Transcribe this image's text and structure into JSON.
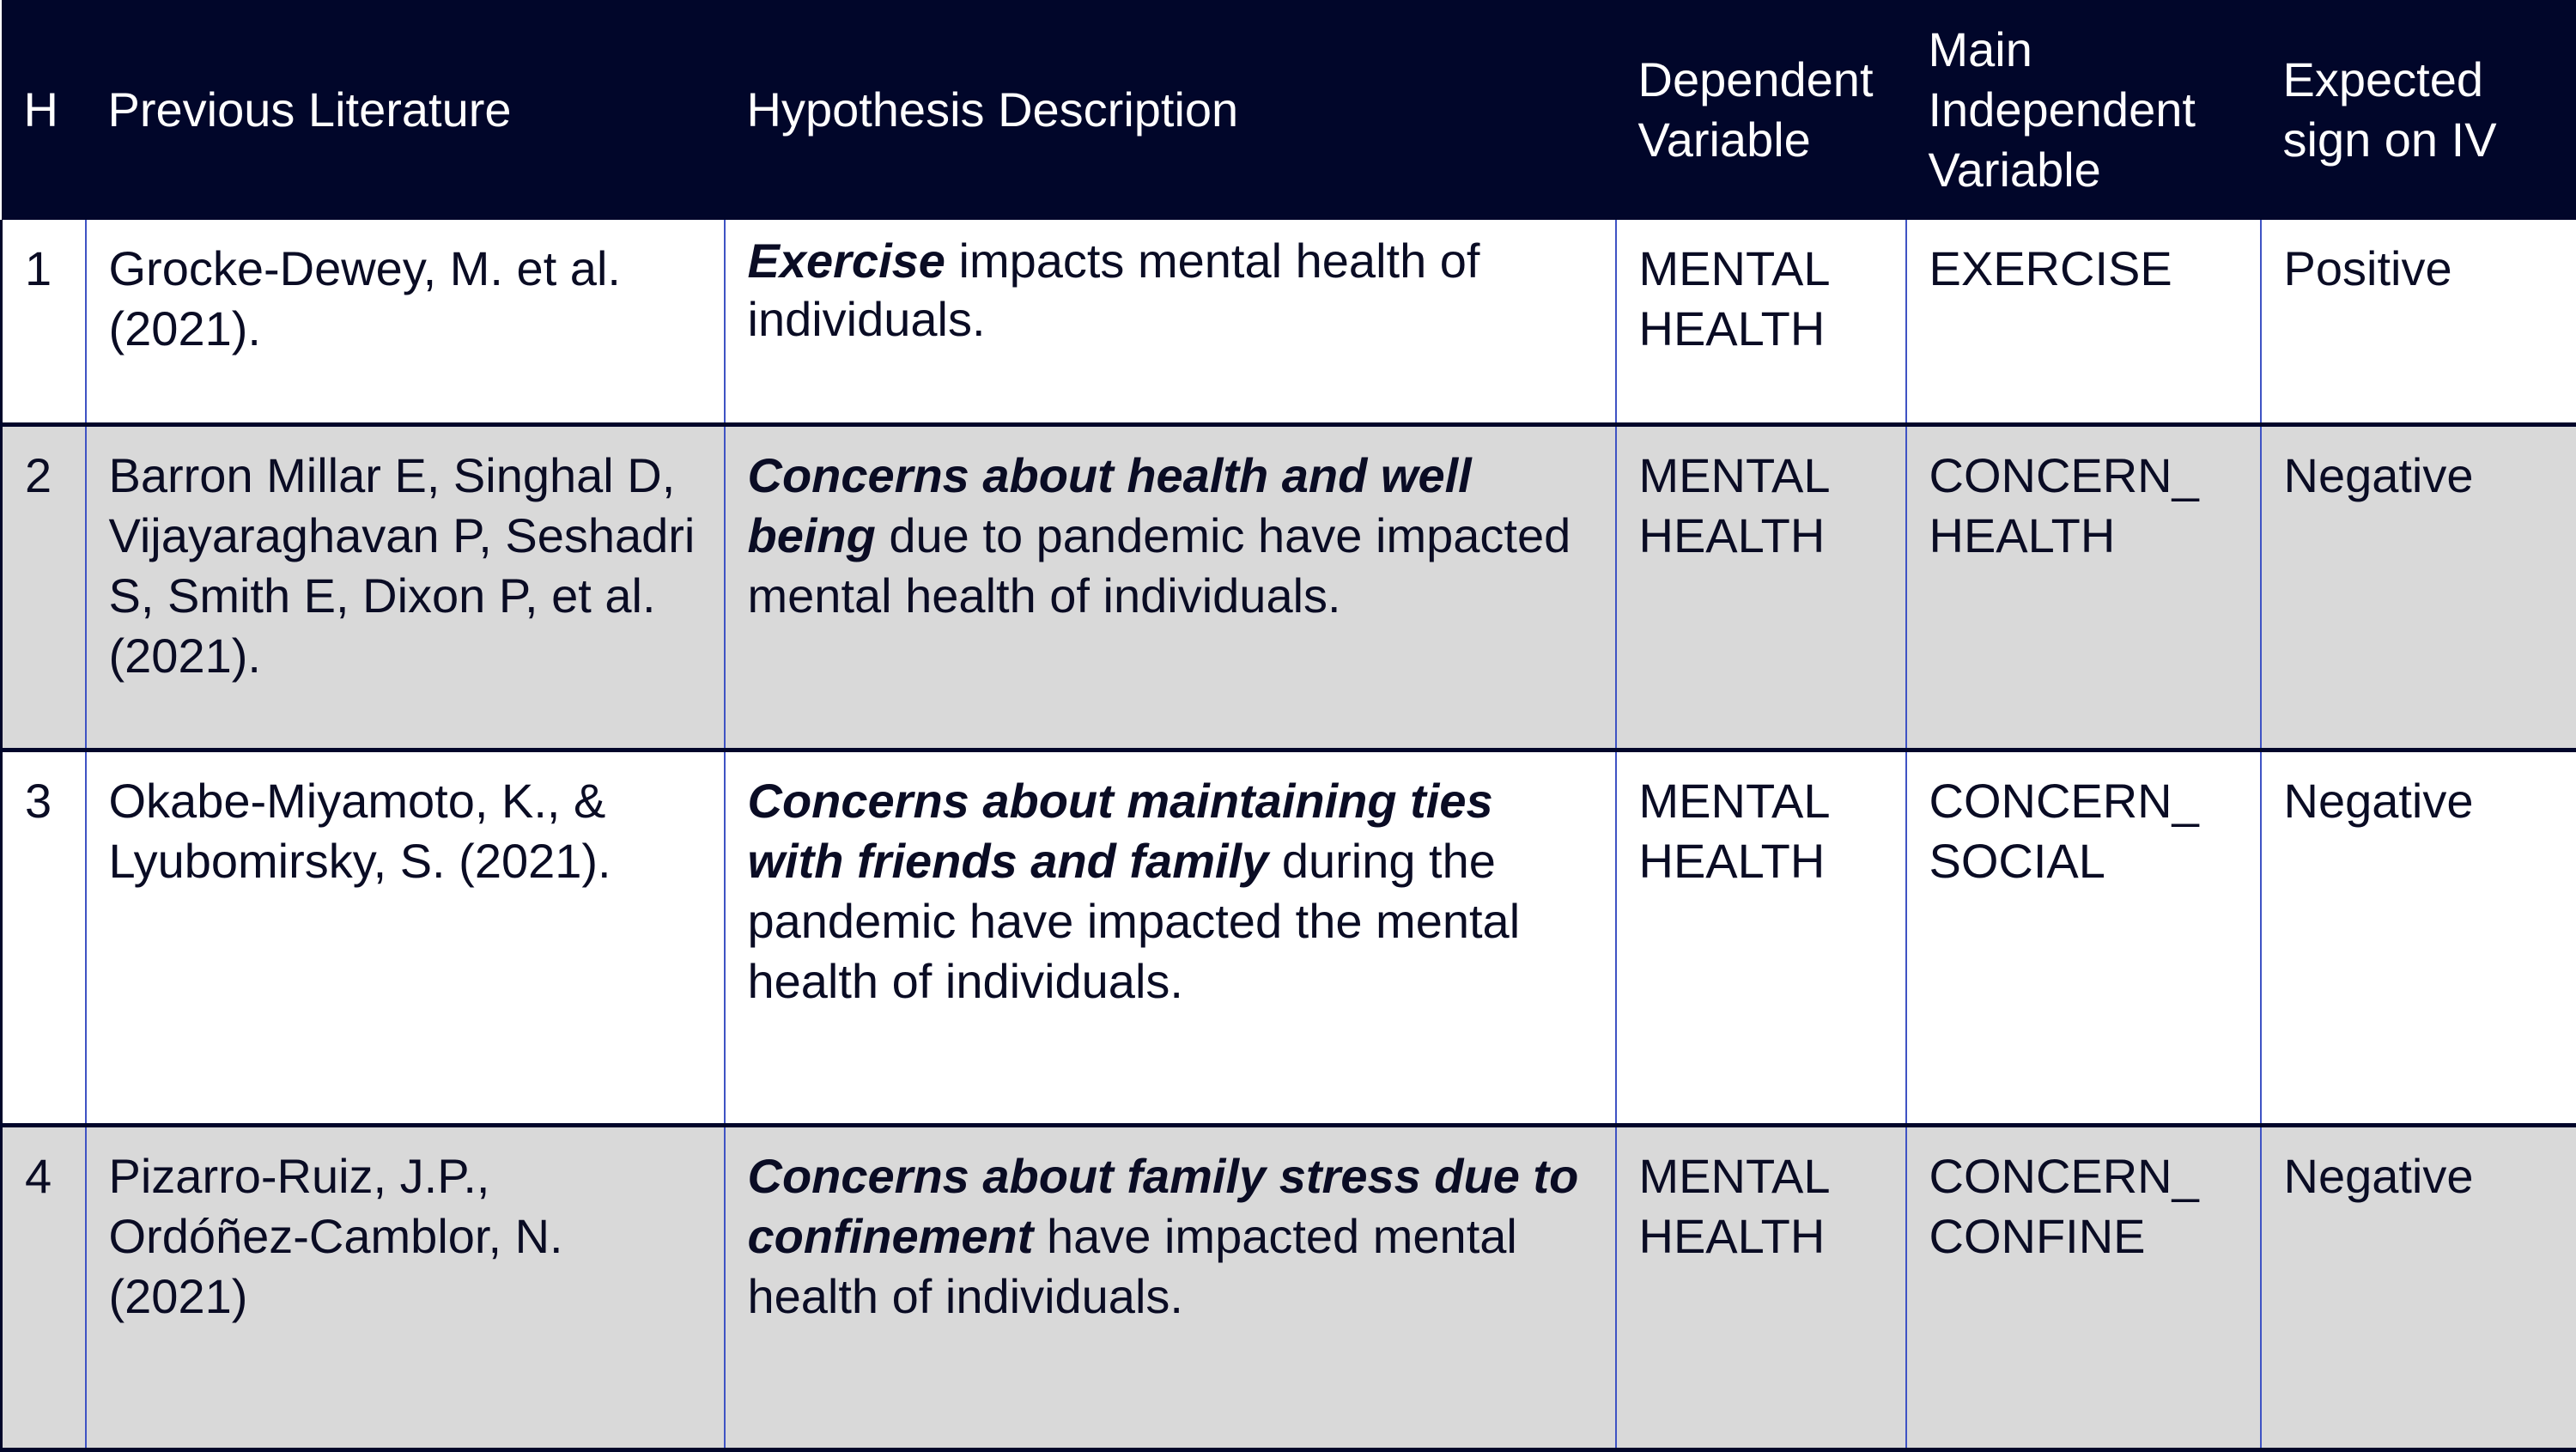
{
  "header": {
    "h": "H",
    "previous_literature": "Previous Literature",
    "hypothesis_description": "Hypothesis Description",
    "dependent_variable": "Dependent Variable",
    "main_independent_variable": "Main Independent Variable",
    "expected_sign": "Expected sign on IV"
  },
  "rows": [
    {
      "h": "1",
      "literature": "Grocke-Dewey, M. et al. (2021).",
      "desc_emph": "Exercise",
      "desc_rest": " impacts mental health of individuals.",
      "dependent": "MENTAL HEALTH",
      "independent": "EXERCISE",
      "sign": "Positive"
    },
    {
      "h": "2",
      "literature": "Barron Millar E, Singhal D, Vijayaraghavan P, Seshadri S, Smith E, Dixon P, et al. (2021).",
      "desc_emph": "Concerns about health and well being",
      "desc_rest": " due to pandemic have impacted mental health of individuals.",
      "dependent": "MENTAL HEALTH",
      "independent": "CONCERN_\nHEALTH",
      "sign": "Negative"
    },
    {
      "h": "3",
      "literature": "Okabe-Miyamoto, K., & Lyubomirsky, S. (2021).",
      "desc_emph": "Concerns about maintaining ties with friends and family",
      "desc_rest": " during the pandemic have impacted the mental health of individuals.",
      "dependent": "MENTAL HEALTH",
      "independent": "CONCERN_\nSOCIAL",
      "sign": "Negative"
    },
    {
      "h": "4",
      "literature": "Pizarro-Ruiz, J.P., Ordóñez-Camblor, N. (2021)",
      "desc_emph": "Concerns about family stress due to confinement",
      "desc_rest": " have impacted mental health of individuals.",
      "dependent": "MENTAL HEALTH",
      "independent": "CONCERN_\nCONFINE",
      "sign": "Negative"
    }
  ]
}
